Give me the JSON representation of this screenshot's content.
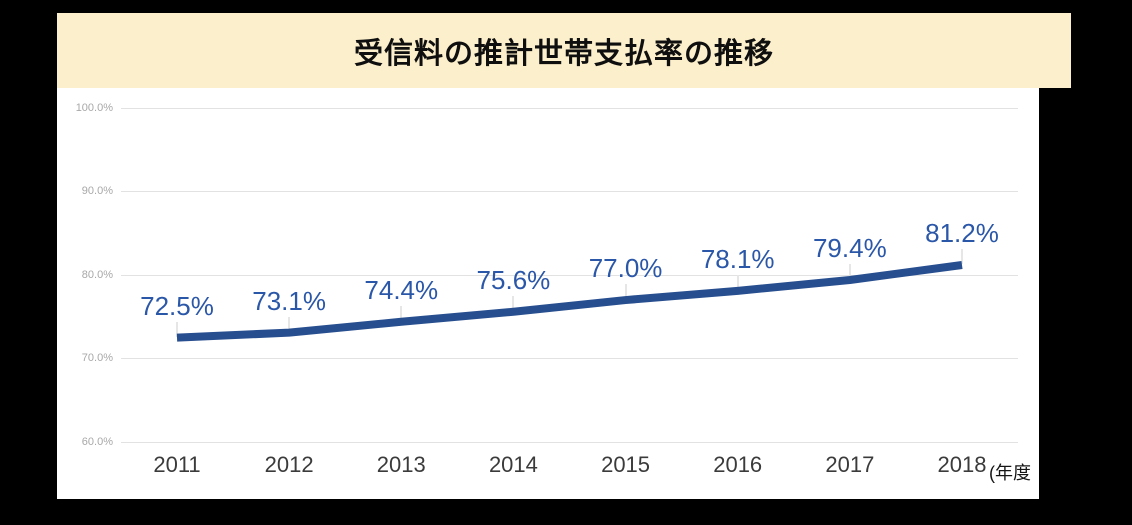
{
  "banner": {
    "title": "受信料の推計世帯支払率の推移"
  },
  "chart_data": {
    "type": "line",
    "title": "受信料の推計世帯支払率の推移",
    "categories": [
      "2011",
      "2012",
      "2013",
      "2014",
      "2015",
      "2016",
      "2017",
      "2018"
    ],
    "values": [
      72.5,
      73.1,
      74.4,
      75.6,
      77.0,
      78.1,
      79.4,
      81.2
    ],
    "point_labels": [
      "72.5%",
      "73.1%",
      "74.4%",
      "75.6%",
      "77.0%",
      "78.1%",
      "79.4%",
      "81.2%"
    ],
    "y_ticks": [
      {
        "value": 100,
        "label": "100.0%"
      },
      {
        "value": 90,
        "label": "90.0%"
      },
      {
        "value": 80,
        "label": "80.0%"
      },
      {
        "value": 70,
        "label": "70.0%"
      },
      {
        "value": 60,
        "label": "60.0%"
      }
    ],
    "ylim": [
      60,
      100
    ],
    "xlabel": "",
    "ylabel": "",
    "axis_unit": "(年度",
    "grid": true,
    "legend": "none",
    "colors": {
      "page_bg": "#000000",
      "banner_bg": "#fcefcb",
      "plot_bg": "#ffffff",
      "line": "#274e8f",
      "point_label": "#2b57a8",
      "grid": "#e2e2e2",
      "stem": "#e6e6e6",
      "y_tick": "#a8a8a8",
      "x_tick": "#3b3b3b"
    }
  }
}
